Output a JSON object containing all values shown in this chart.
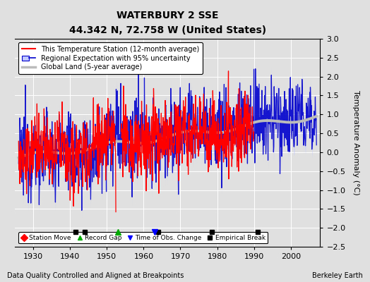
{
  "title": "WATERBURY 2 SSE",
  "subtitle": "44.342 N, 72.758 W (United States)",
  "ylabel": "Temperature Anomaly (°C)",
  "xlabel_note": "Data Quality Controlled and Aligned at Breakpoints",
  "credit": "Berkeley Earth",
  "ylim": [
    -2.5,
    3.0
  ],
  "xlim": [
    1925,
    2008
  ],
  "yticks": [
    -2.5,
    -2,
    -1.5,
    -1,
    -0.5,
    0,
    0.5,
    1,
    1.5,
    2,
    2.5,
    3
  ],
  "xticks": [
    1930,
    1940,
    1950,
    1960,
    1970,
    1980,
    1990,
    2000
  ],
  "bg_color": "#e0e0e0",
  "plot_bg_color": "#e0e0e0",
  "red_color": "#ff0000",
  "blue_color": "#0000cc",
  "blue_fill_color": "#aaaaff",
  "gray_color": "#bbbbbb",
  "grid_color": "#ffffff",
  "station_end_year": 1990,
  "regional_end_year": 2007,
  "emp_breaks": [
    1941.5,
    1944.0,
    1964.0,
    1978.5,
    1991.0
  ],
  "record_gaps": [
    1953.0
  ],
  "obs_changes": [
    1963.0
  ],
  "station_moves": [],
  "legend_items": [
    {
      "label": "This Temperature Station (12-month average)",
      "color": "#ff0000",
      "lw": 1.5
    },
    {
      "label": "Regional Expectation with 95% uncertainty",
      "color": "#0000cc",
      "lw": 1.5
    },
    {
      "label": "Global Land (5-year average)",
      "color": "#bbbbbb",
      "lw": 2.0
    }
  ],
  "marker_labels": [
    "Station Move",
    "Record Gap",
    "Time of Obs. Change",
    "Empirical Break"
  ]
}
